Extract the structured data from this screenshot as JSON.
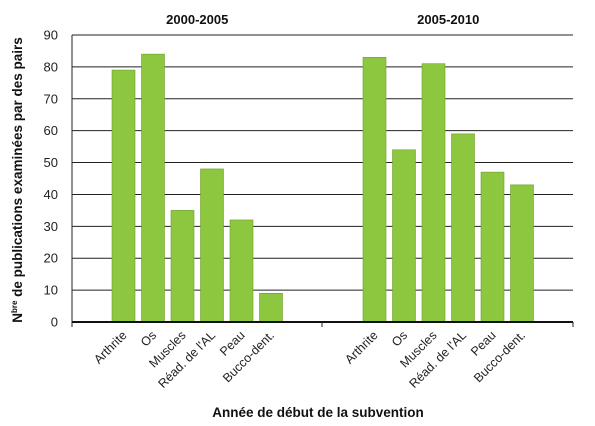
{
  "chart_data": {
    "type": "bar",
    "xlabel": "Année de début de la subvention",
    "ylabel": {
      "prefix": "N",
      "sup": "bre",
      "rest": " de publications examinées par des pairs"
    },
    "ylim": [
      0,
      90
    ],
    "yticks": [
      0,
      10,
      20,
      30,
      40,
      50,
      60,
      70,
      80,
      90
    ],
    "grid": true,
    "bar_color": "#8dc63f",
    "bar_edge_color": "#6e9e2c",
    "groups": [
      {
        "label": "2000-2005",
        "categories": [
          "Arthrite",
          "Os",
          "Muscles",
          "Réad. de l'AL",
          "Peau",
          "Bucco-dent."
        ],
        "values": [
          79,
          84,
          35,
          48,
          32,
          9
        ]
      },
      {
        "label": "2005-2010",
        "categories": [
          "Arthrite",
          "Os",
          "Muscles",
          "Réad. de l'AL",
          "Peau",
          "Bucco-dent."
        ],
        "values": [
          83,
          54,
          81,
          59,
          47,
          43
        ]
      }
    ]
  }
}
